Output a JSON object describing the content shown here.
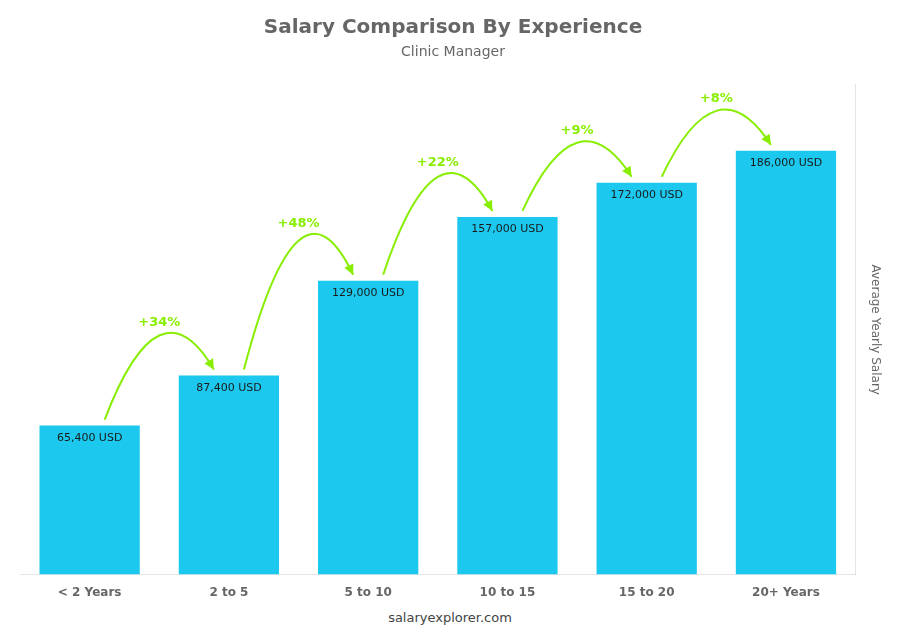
{
  "chart_data": {
    "type": "bar",
    "title": "Salary Comparison By Experience",
    "subtitle": "Clinic Manager",
    "categories": [
      "< 2 Years",
      "2 to 5",
      "5 to 10",
      "10 to 15",
      "15 to 20",
      "20+ Years"
    ],
    "values": [
      65400,
      87400,
      129000,
      157000,
      172000,
      186000
    ],
    "value_labels": [
      "65,400 USD",
      "87,400 USD",
      "129,000 USD",
      "157,000 USD",
      "172,000 USD",
      "186,000 USD"
    ],
    "data_labels": true,
    "color": "#1CC8EE",
    "ylabel": "Average Yearly Salary",
    "ylim": [
      0,
      215000
    ],
    "tick_labels": "x",
    "grid": false,
    "annotations": [
      {
        "text": "+34%",
        "from": "< 2 Years",
        "to": "2 to 5",
        "color": "#88EE00"
      },
      {
        "text": "+48%",
        "from": "2 to 5",
        "to": "5 to 10",
        "color": "#88EE00"
      },
      {
        "text": "+22%",
        "from": "5 to 10",
        "to": "10 to 15",
        "color": "#88EE00"
      },
      {
        "text": "+9%",
        "from": "10 to 15",
        "to": "15 to 20",
        "color": "#88EE00"
      },
      {
        "text": "+8%",
        "from": "15 to 20",
        "to": "20+ Years",
        "color": "#88EE00"
      }
    ],
    "footer": "salaryexplorer.com"
  }
}
